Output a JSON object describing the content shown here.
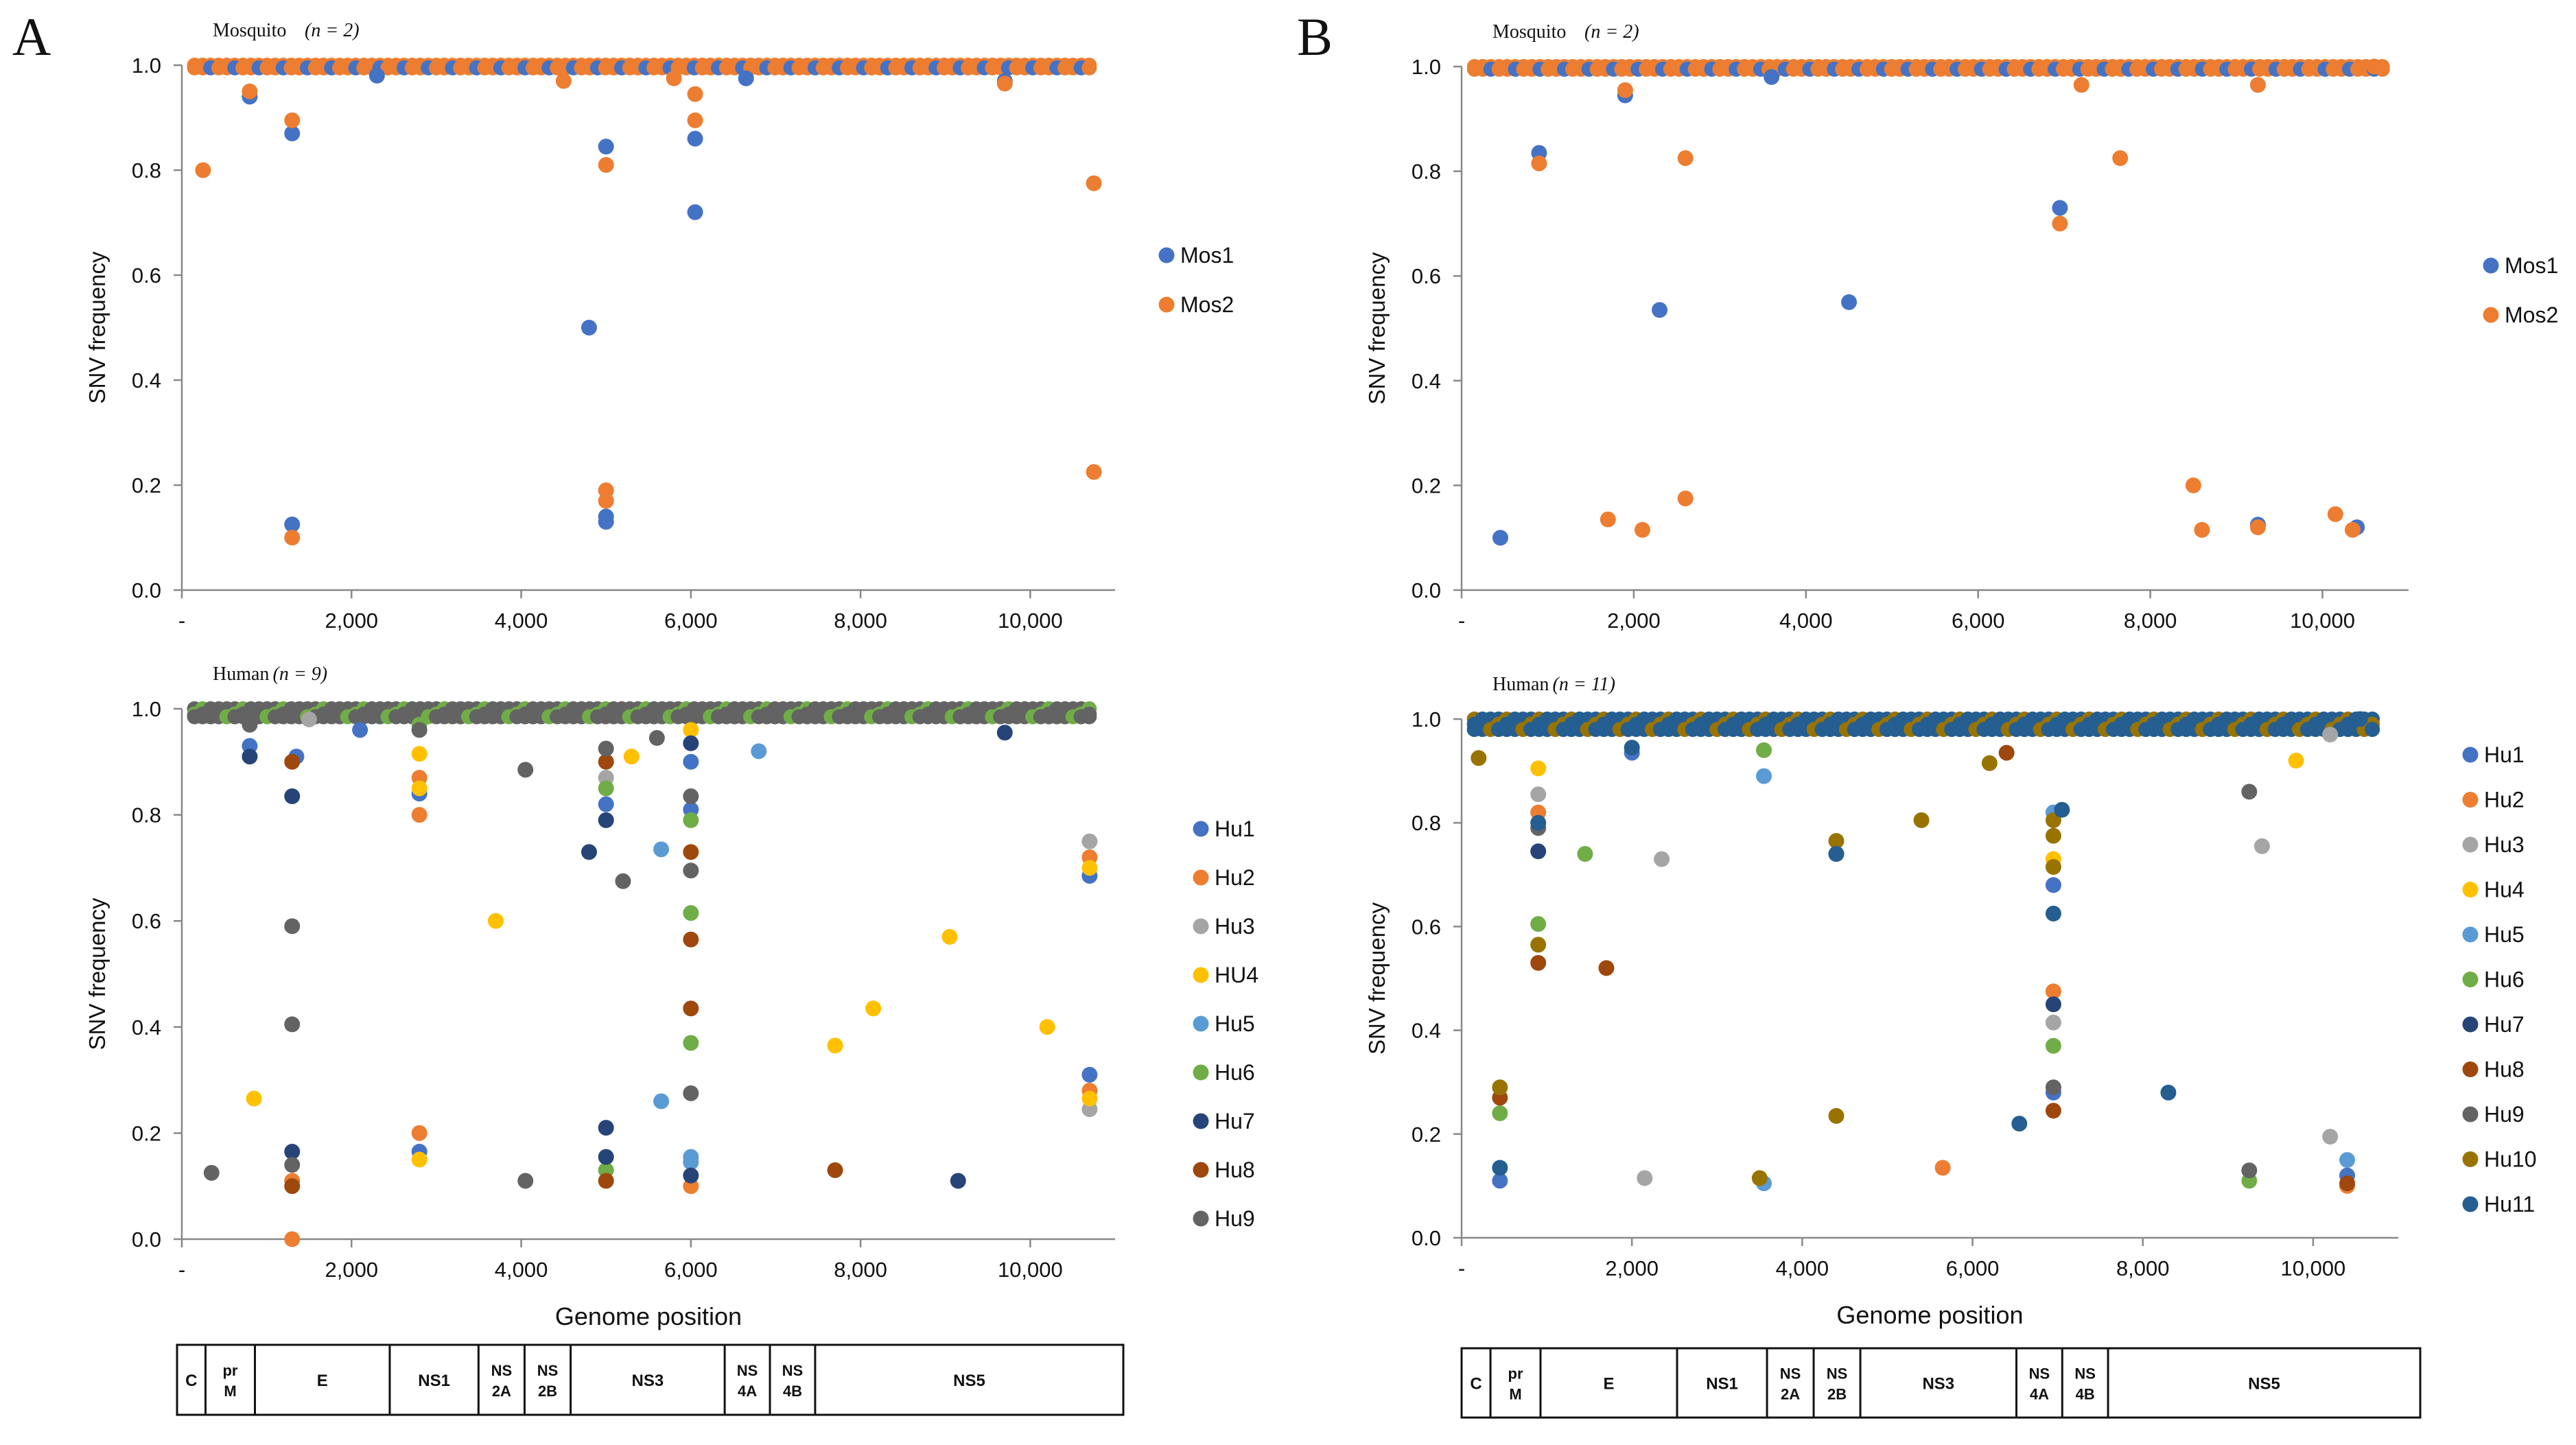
{
  "panels": [
    {
      "letter": "A"
    },
    {
      "letter": "B"
    }
  ],
  "genome_map": {
    "segments": [
      {
        "name": "C",
        "start": 0,
        "end": 340
      },
      {
        "name": "pr M",
        "start": 340,
        "end": 930
      },
      {
        "name": "E",
        "start": 930,
        "end": 2540
      },
      {
        "name": "NS1",
        "start": 2540,
        "end": 3600
      },
      {
        "name": "NS 2A",
        "start": 3600,
        "end": 4150
      },
      {
        "name": "NS 2B",
        "start": 4150,
        "end": 4700
      },
      {
        "name": "NS3",
        "start": 4700,
        "end": 6540
      },
      {
        "name": "NS 4A",
        "start": 6540,
        "end": 7080
      },
      {
        "name": "NS 4B",
        "start": 7080,
        "end": 7620
      },
      {
        "name": "NS5",
        "start": 7620,
        "end": 11300
      }
    ]
  },
  "colors": {
    "Mos1": "#4472C4",
    "Mos2": "#ED7D31",
    "Hu1": "#4472C4",
    "Hu2": "#ED7D31",
    "Hu3": "#A5A5A5",
    "Hu4": "#FFC000",
    "Hu5": "#5B9BD5",
    "Hu6": "#70AD47",
    "Hu7": "#264478",
    "Hu8": "#9E480E",
    "Hu9": "#636363",
    "Hu10": "#997300",
    "Hu11": "#255E91"
  },
  "chart_data": [
    {
      "type": "scatter",
      "panel": "A",
      "row": "top",
      "title": "Mosquito",
      "n_label": "(n = 2)",
      "xlabel": "",
      "ylabel": "SNV frequency",
      "xlim": [
        0,
        11000
      ],
      "ylim": [
        0,
        1
      ],
      "xticks": [
        "-",
        "2,000",
        "4,000",
        "6,000",
        "8,000",
        "10,000"
      ],
      "yticks": [
        "0.0",
        "0.2",
        "0.4",
        "0.6",
        "0.8",
        "1.0"
      ],
      "legend": "right",
      "series": [
        {
          "name": "Mos1",
          "points": [
            [
              800,
              0.94
            ],
            [
              1300,
              0.87
            ],
            [
              1300,
              0.125
            ],
            [
              2300,
              0.98
            ],
            [
              4800,
              0.5
            ],
            [
              5000,
              0.845
            ],
            [
              5000,
              0.14
            ],
            [
              5000,
              0.13
            ],
            [
              6050,
              0.86
            ],
            [
              6050,
              0.72
            ],
            [
              6650,
              0.975
            ],
            [
              9700,
              0.97
            ]
          ]
        },
        {
          "name": "Mos2",
          "points": [
            [
              250,
              0.8
            ],
            [
              800,
              0.95
            ],
            [
              1300,
              0.895
            ],
            [
              1300,
              0.1
            ],
            [
              4500,
              0.97
            ],
            [
              5000,
              0.81
            ],
            [
              5000,
              0.19
            ],
            [
              5000,
              0.17
            ],
            [
              5800,
              0.975
            ],
            [
              6050,
              0.945
            ],
            [
              6050,
              0.895
            ],
            [
              9700,
              0.965
            ],
            [
              10750,
              0.775
            ],
            [
              10750,
              0.225
            ]
          ]
        }
      ]
    },
    {
      "type": "scatter",
      "panel": "A",
      "row": "bottom",
      "title": "Human",
      "n_label": "(n = 9)",
      "xlabel": "Genome position",
      "ylabel": "SNV frequency",
      "xlim": [
        0,
        11000
      ],
      "ylim": [
        0,
        1
      ],
      "xticks": [
        "-",
        "2,000",
        "4,000",
        "6,000",
        "8,000",
        "10,000"
      ],
      "yticks": [
        "0.0",
        "0.2",
        "0.4",
        "0.6",
        "0.8",
        "1.0"
      ],
      "legend": "right",
      "series": [
        {
          "name": "Hu1",
          "points": [
            [
              800,
              0.93
            ],
            [
              1350,
              0.91
            ],
            [
              2100,
              0.96
            ],
            [
              2800,
              0.84
            ],
            [
              2800,
              0.165
            ],
            [
              5000,
              0.82
            ],
            [
              6000,
              0.9
            ],
            [
              6000,
              0.81
            ],
            [
              10700,
              0.685
            ],
            [
              10700,
              0.31
            ]
          ]
        },
        {
          "name": "Hu2",
          "points": [
            [
              1300,
              0.0
            ],
            [
              1300,
              0.11
            ],
            [
              2800,
              0.87
            ],
            [
              2800,
              0.8
            ],
            [
              2800,
              0.2
            ],
            [
              6000,
              0.1
            ],
            [
              10700,
              0.72
            ],
            [
              10700,
              0.28
            ]
          ]
        },
        {
          "name": "Hu3",
          "points": [
            [
              1500,
              0.98
            ],
            [
              5000,
              0.87
            ],
            [
              10700,
              0.75
            ],
            [
              10700,
              0.245
            ]
          ]
        },
        {
          "name": "HU4",
          "points": [
            [
              850,
              0.265
            ],
            [
              2800,
              0.915
            ],
            [
              2800,
              0.85
            ],
            [
              2800,
              0.15
            ],
            [
              3700,
              0.6
            ],
            [
              5300,
              0.91
            ],
            [
              6000,
              0.96
            ],
            [
              7700,
              0.365
            ],
            [
              8150,
              0.435
            ],
            [
              9050,
              0.57
            ],
            [
              10200,
              0.4
            ],
            [
              10700,
              0.7
            ],
            [
              10700,
              0.265
            ]
          ]
        },
        {
          "name": "Hu5",
          "points": [
            [
              5650,
              0.735
            ],
            [
              5650,
              0.26
            ],
            [
              6000,
              0.145
            ],
            [
              6000,
              0.155
            ],
            [
              6800,
              0.92
            ]
          ]
        },
        {
          "name": "Hu6",
          "points": [
            [
              2800,
              0.97
            ],
            [
              5000,
              0.85
            ],
            [
              5000,
              0.13
            ],
            [
              6000,
              0.79
            ],
            [
              6000,
              0.615
            ],
            [
              6000,
              0.37
            ]
          ]
        },
        {
          "name": "Hu7",
          "points": [
            [
              800,
              0.91
            ],
            [
              1300,
              0.835
            ],
            [
              1300,
              0.165
            ],
            [
              4800,
              0.73
            ],
            [
              5000,
              0.79
            ],
            [
              5000,
              0.21
            ],
            [
              5000,
              0.155
            ],
            [
              6000,
              0.935
            ],
            [
              6000,
              0.12
            ],
            [
              9150,
              0.11
            ],
            [
              9700,
              0.955
            ]
          ]
        },
        {
          "name": "Hu8",
          "points": [
            [
              1300,
              0.9
            ],
            [
              1300,
              0.1
            ],
            [
              5000,
              0.9
            ],
            [
              5000,
              0.11
            ],
            [
              6000,
              0.73
            ],
            [
              6000,
              0.565
            ],
            [
              6000,
              0.435
            ],
            [
              7700,
              0.13
            ]
          ]
        },
        {
          "name": "Hu9",
          "points": [
            [
              350,
              0.125
            ],
            [
              800,
              0.97
            ],
            [
              1300,
              0.59
            ],
            [
              1300,
              0.405
            ],
            [
              1300,
              0.14
            ],
            [
              2800,
              0.96
            ],
            [
              4050,
              0.885
            ],
            [
              4050,
              0.11
            ],
            [
              5000,
              0.925
            ],
            [
              5200,
              0.675
            ],
            [
              5600,
              0.945
            ],
            [
              6000,
              0.835
            ],
            [
              6000,
              0.695
            ],
            [
              6000,
              0.275
            ]
          ]
        }
      ]
    },
    {
      "type": "scatter",
      "panel": "B",
      "row": "top",
      "title": "Mosquito",
      "n_label": "(n = 2)",
      "xlabel": "",
      "ylabel": "SNV frequency",
      "xlim": [
        0,
        11000
      ],
      "ylim": [
        0,
        1
      ],
      "xticks": [
        "-",
        "2,000",
        "4,000",
        "6,000",
        "8,000",
        "10,000"
      ],
      "yticks": [
        "0.0",
        "0.2",
        "0.4",
        "0.6",
        "0.8",
        "1.0"
      ],
      "legend": "right",
      "series": [
        {
          "name": "Mos1",
          "points": [
            [
              450,
              0.1
            ],
            [
              900,
              0.835
            ],
            [
              1900,
              0.945
            ],
            [
              2300,
              0.535
            ],
            [
              3600,
              0.98
            ],
            [
              4500,
              0.55
            ],
            [
              6950,
              0.73
            ],
            [
              9250,
              0.125
            ],
            [
              10400,
              0.12
            ]
          ]
        },
        {
          "name": "Mos2",
          "points": [
            [
              900,
              0.815
            ],
            [
              1900,
              0.955
            ],
            [
              1700,
              0.135
            ],
            [
              2100,
              0.115
            ],
            [
              2600,
              0.825
            ],
            [
              2600,
              0.175
            ],
            [
              6950,
              0.7
            ],
            [
              7200,
              0.965
            ],
            [
              7650,
              0.825
            ],
            [
              8500,
              0.2
            ],
            [
              8600,
              0.115
            ],
            [
              9250,
              0.965
            ],
            [
              9250,
              0.12
            ],
            [
              10150,
              0.145
            ],
            [
              10350,
              0.115
            ],
            [
              10600,
              1.0
            ]
          ]
        }
      ]
    },
    {
      "type": "scatter",
      "panel": "B",
      "row": "bottom",
      "title": "Human",
      "n_label": "(n = 11)",
      "xlabel": "Genome position",
      "ylabel": "SNV frequency",
      "xlim": [
        0,
        11000
      ],
      "ylim": [
        0,
        1
      ],
      "xticks": [
        "-",
        "2,000",
        "4,000",
        "6,000",
        "8,000",
        "10,000"
      ],
      "yticks": [
        "0.0",
        "0.2",
        "0.4",
        "0.6",
        "0.8",
        "1.0"
      ],
      "legend": "right",
      "series": [
        {
          "name": "Hu1",
          "points": [
            [
              450,
              0.11
            ],
            [
              2000,
              0.935
            ],
            [
              6950,
              0.28
            ],
            [
              6950,
              0.68
            ],
            [
              10400,
              0.12
            ]
          ]
        },
        {
          "name": "Hu2",
          "points": [
            [
              900,
              0.82
            ],
            [
              6950,
              0.475
            ],
            [
              5650,
              0.135
            ],
            [
              10400,
              0.1
            ]
          ]
        },
        {
          "name": "Hu3",
          "points": [
            [
              900,
              0.855
            ],
            [
              2350,
              0.73
            ],
            [
              2150,
              0.115
            ],
            [
              6950,
              0.415
            ],
            [
              10200,
              0.195
            ],
            [
              9400,
              0.755
            ],
            [
              10200,
              0.97
            ]
          ]
        },
        {
          "name": "Hu4",
          "points": [
            [
              900,
              0.905
            ],
            [
              6950,
              0.73
            ],
            [
              9800,
              0.92
            ]
          ]
        },
        {
          "name": "Hu5",
          "points": [
            [
              3550,
              0.89
            ],
            [
              3550,
              0.105
            ],
            [
              6950,
              0.82
            ],
            [
              10400,
              0.15
            ]
          ]
        },
        {
          "name": "Hu6",
          "points": [
            [
              450,
              0.24
            ],
            [
              900,
              0.605
            ],
            [
              1450,
              0.74
            ],
            [
              3550,
              0.94
            ],
            [
              6950,
              0.37
            ],
            [
              9250,
              0.11
            ]
          ]
        },
        {
          "name": "Hu7",
          "points": [
            [
              900,
              0.745
            ],
            [
              6950,
              0.45
            ],
            [
              4400,
              0.74
            ]
          ]
        },
        {
          "name": "Hu8",
          "points": [
            [
              450,
              0.27
            ],
            [
              900,
              0.53
            ],
            [
              1700,
              0.52
            ],
            [
              6950,
              0.245
            ],
            [
              6400,
              0.935
            ],
            [
              10400,
              0.105
            ]
          ]
        },
        {
          "name": "Hu9",
          "points": [
            [
              900,
              0.79
            ],
            [
              6950,
              0.29
            ],
            [
              9250,
              0.86
            ],
            [
              9250,
              0.13
            ]
          ]
        },
        {
          "name": "Hu10",
          "points": [
            [
              200,
              0.925
            ],
            [
              450,
              0.29
            ],
            [
              900,
              0.565
            ],
            [
              3500,
              0.115
            ],
            [
              4400,
              0.765
            ],
            [
              4400,
              0.235
            ],
            [
              5400,
              0.805
            ],
            [
              6200,
              0.915
            ],
            [
              6950,
              0.805
            ],
            [
              6950,
              0.775
            ],
            [
              6950,
              0.715
            ]
          ]
        },
        {
          "name": "Hu11",
          "points": [
            [
              450,
              0.135
            ],
            [
              900,
              0.8
            ],
            [
              2000,
              0.945
            ],
            [
              4400,
              0.74
            ],
            [
              6550,
              0.22
            ],
            [
              7050,
              0.825
            ],
            [
              8300,
              0.28
            ],
            [
              6950,
              0.625
            ],
            [
              10550,
              1.0
            ]
          ]
        }
      ]
    }
  ]
}
